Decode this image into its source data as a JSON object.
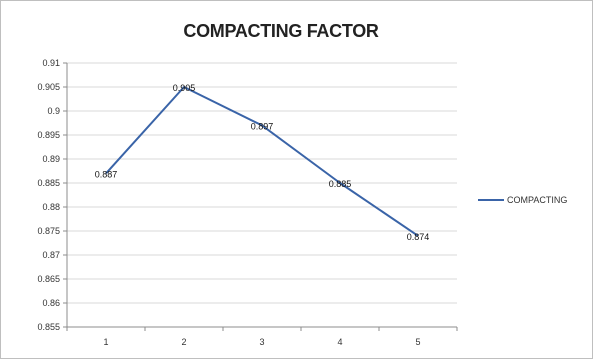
{
  "chart_data": {
    "type": "line",
    "title": "COMPACTING FACTOR",
    "xlabel": "",
    "ylabel": "",
    "categories": [
      "1",
      "2",
      "3",
      "4",
      "5"
    ],
    "series": [
      {
        "name": "COMPACTING",
        "values": [
          0.887,
          0.905,
          0.897,
          0.885,
          0.874
        ],
        "data_labels": [
          "0.887",
          "0.905",
          "0.897",
          "0.885",
          "0.874"
        ],
        "color": "#3a64a8"
      }
    ],
    "ylim": [
      0.855,
      0.91
    ],
    "yticks": [
      "0.91",
      "0.905",
      "0.9",
      "0.895",
      "0.89",
      "0.885",
      "0.88",
      "0.875",
      "0.87",
      "0.865",
      "0.86",
      "0.855"
    ],
    "grid": true,
    "legend_position": "right"
  }
}
